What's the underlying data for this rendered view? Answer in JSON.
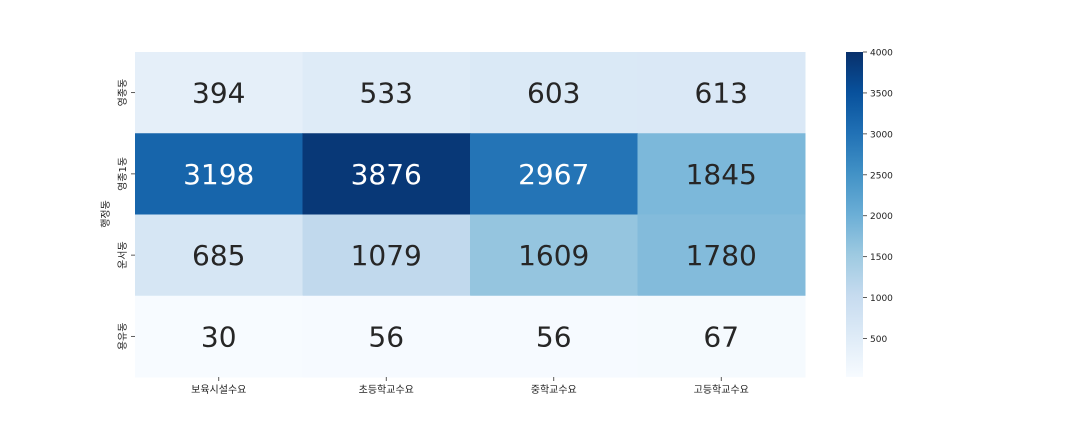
{
  "chart_data": {
    "type": "heatmap",
    "title": "",
    "xlabel": "",
    "ylabel": "행정동",
    "x_categories": [
      "보육시설수요",
      "초등학교수요",
      "중학교수요",
      "고등학교수요"
    ],
    "y_categories": [
      "영종동",
      "영종1동",
      "운서동",
      "용유동"
    ],
    "values": [
      [
        394,
        533,
        603,
        613
      ],
      [
        3198,
        3876,
        2967,
        1845
      ],
      [
        685,
        1079,
        1609,
        1780
      ],
      [
        30,
        56,
        56,
        67
      ]
    ],
    "colorbar": {
      "range": [
        30,
        4000
      ],
      "ticks": [
        500,
        1000,
        1500,
        2000,
        2500,
        3000,
        3500,
        4000
      ]
    },
    "colormap": [
      "#f7fbff",
      "#deebf7",
      "#c6dbef",
      "#9ecae1",
      "#6baed6",
      "#4292c6",
      "#2171b5",
      "#08519c",
      "#08306b"
    ]
  }
}
